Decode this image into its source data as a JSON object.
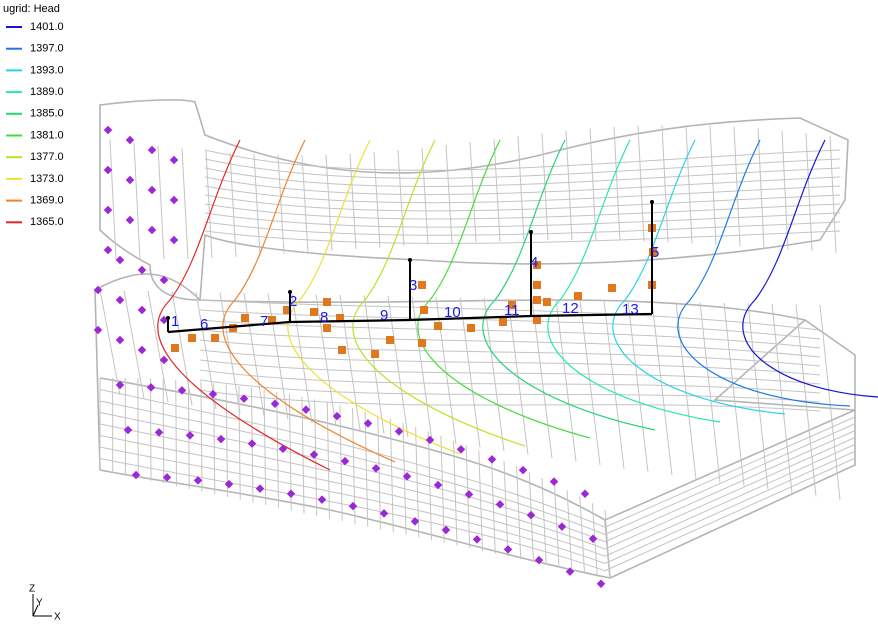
{
  "legend": {
    "title": "ugrid: Head",
    "entries": [
      {
        "label": "1401.0",
        "color": "#1414d2"
      },
      {
        "label": "1397.0",
        "color": "#1e78e6"
      },
      {
        "label": "1393.0",
        "color": "#28d2e6"
      },
      {
        "label": "1389.0",
        "color": "#28e6b4"
      },
      {
        "label": "1385.0",
        "color": "#28d278"
      },
      {
        "label": "1381.0",
        "color": "#46dc3c"
      },
      {
        "label": "1377.0",
        "color": "#b4e628"
      },
      {
        "label": "1373.0",
        "color": "#ebe132"
      },
      {
        "label": "1369.0",
        "color": "#f08228"
      },
      {
        "label": "1365.0",
        "color": "#e12828"
      }
    ]
  },
  "wells": [
    {
      "label": "1"
    },
    {
      "label": "2"
    },
    {
      "label": "3"
    },
    {
      "label": "4"
    },
    {
      "label": "5"
    },
    {
      "label": "6"
    },
    {
      "label": "7"
    },
    {
      "label": "8"
    },
    {
      "label": "9"
    },
    {
      "label": "10"
    },
    {
      "label": "11"
    },
    {
      "label": "12"
    },
    {
      "label": "13"
    }
  ],
  "axes": {
    "z": "Z",
    "y": "Y",
    "x": "X"
  }
}
